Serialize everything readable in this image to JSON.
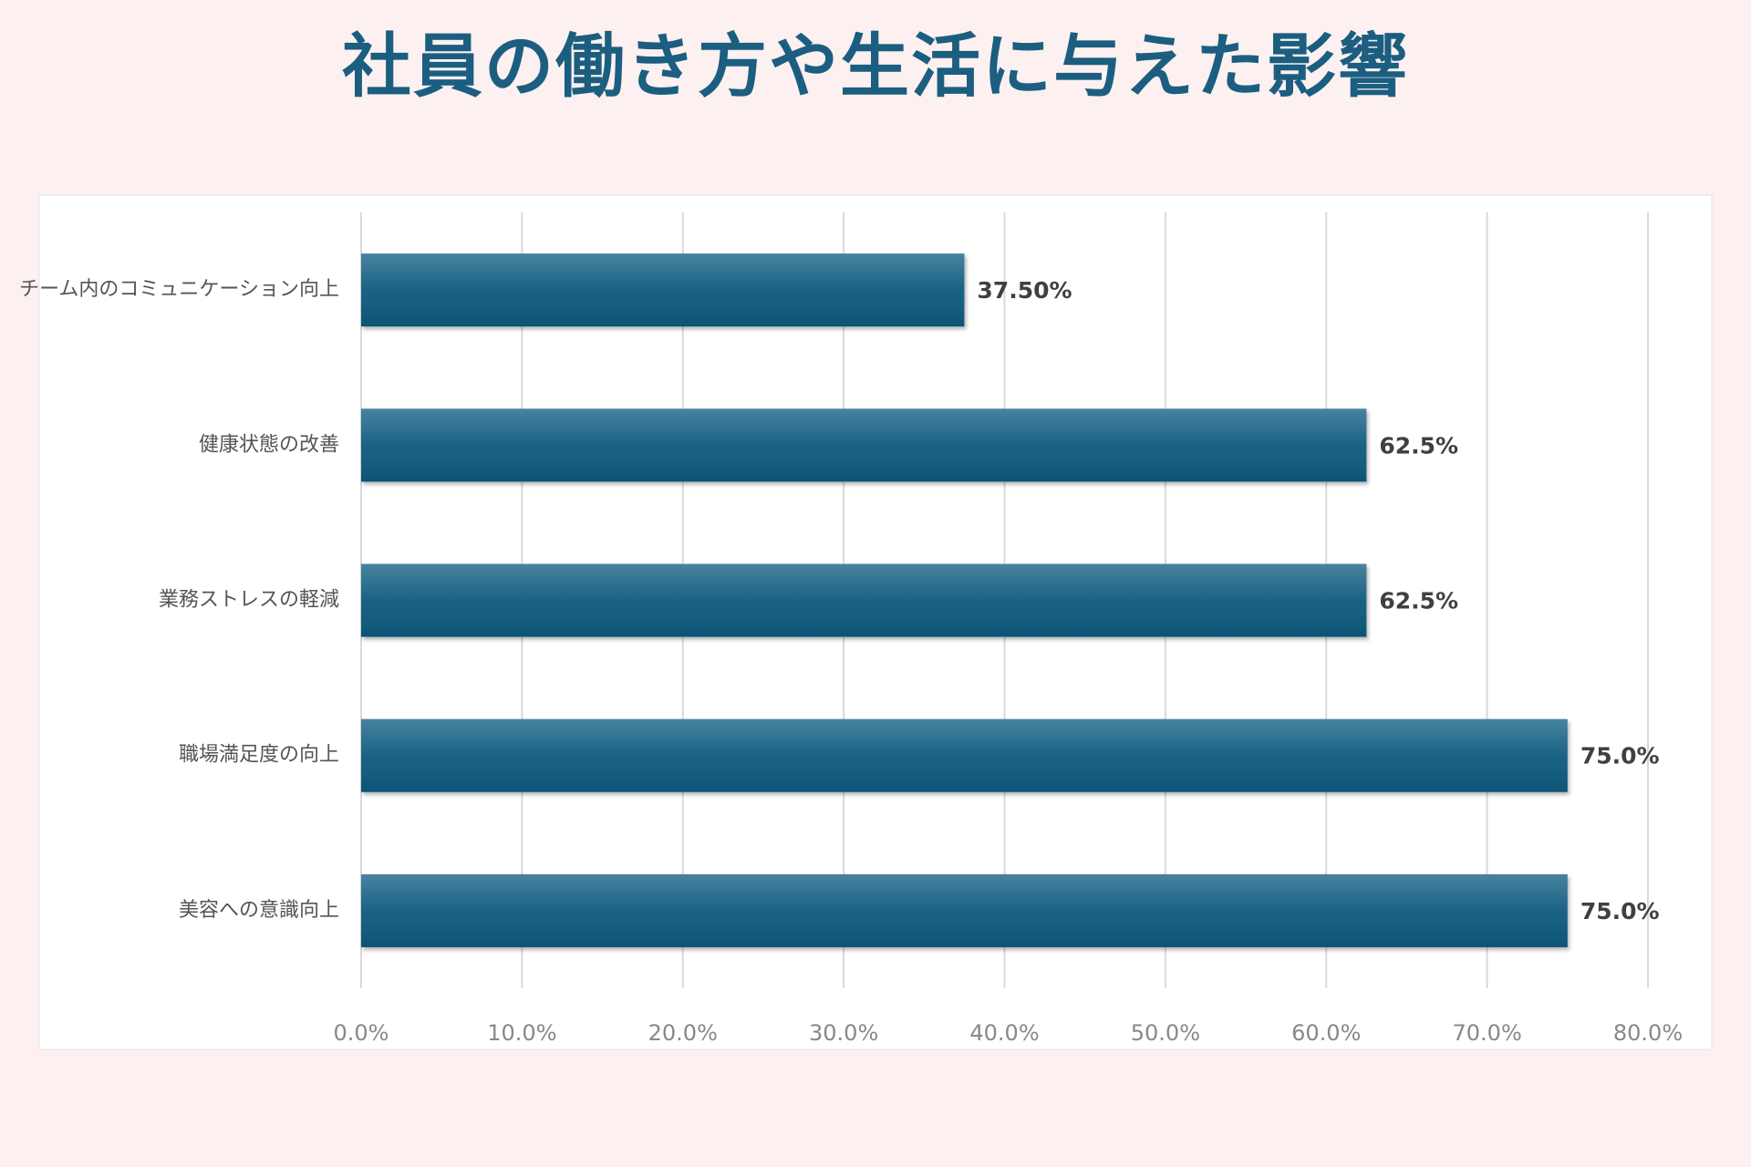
{
  "chart_data": {
    "type": "barh",
    "title": "社員の働き方や生活に与えた影響",
    "categories": [
      "チーム内のコミュニケーション向上",
      "健康状態の改善",
      "業務ストレスの軽減",
      "職場満足度の向上",
      "美容への意識向上"
    ],
    "values": [
      37.5,
      62.5,
      62.5,
      75,
      75
    ],
    "value_labels": [
      "37.50%",
      "62.5%",
      "62.5%",
      "75.0%",
      "75.0%"
    ],
    "color": "#0f5a80",
    "xlim": [
      0,
      80
    ],
    "xticks": [
      {
        "value": 0,
        "label": "0.0%"
      },
      {
        "value": 10,
        "label": "10.0%"
      },
      {
        "value": 20,
        "label": "20.0%"
      },
      {
        "value": 30,
        "label": "30.0%"
      },
      {
        "value": 40,
        "label": "40.0%"
      },
      {
        "value": 50,
        "label": "50.0%"
      },
      {
        "value": 60,
        "label": "60.0%"
      },
      {
        "value": 70,
        "label": "70.0%"
      },
      {
        "value": 80,
        "label": "80.0%"
      }
    ],
    "grid": true
  }
}
